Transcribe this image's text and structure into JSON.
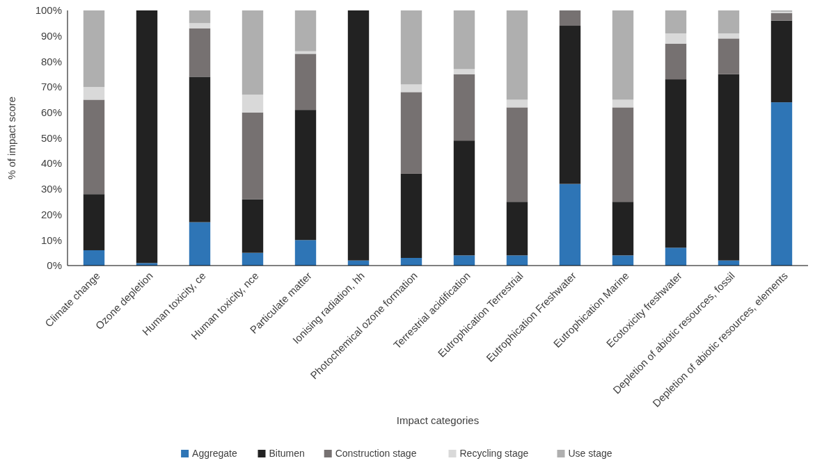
{
  "chart_data": {
    "type": "bar",
    "stacked": true,
    "xlabel": "Impact categories",
    "ylabel": "% of impact score",
    "categories": [
      "Climate change",
      "Ozone depletion",
      "Human toxicity, ce",
      "Human toxicity, nce",
      "Particulate matter",
      "Ionising radiation, hh",
      "Photochemical ozone formation",
      "Terrestrial acidification",
      "Eutrophication Terrestrial",
      "Eutrophication Freshwater",
      "Eutrophication Marine",
      "Ecotoxicity freshwater",
      "Depletion of abiotic resources, fossil",
      "Depletion of abiotic resources, elements"
    ],
    "series": [
      {
        "name": "Aggregate",
        "color": "#2e75b6",
        "values": [
          6,
          1,
          17,
          5,
          10,
          2,
          3,
          4,
          4,
          32,
          4,
          7,
          2,
          64
        ]
      },
      {
        "name": "Bitumen",
        "color": "#222222",
        "values": [
          22,
          99,
          57,
          21,
          51,
          98,
          33,
          45,
          21,
          62,
          21,
          66,
          73,
          32
        ]
      },
      {
        "name": "Construction stage",
        "color": "#767171",
        "values": [
          37,
          0,
          19,
          34,
          22,
          0,
          32,
          26,
          37,
          6,
          37,
          14,
          14,
          3
        ]
      },
      {
        "name": "Recycling stage",
        "color": "#d9d9d9",
        "values": [
          5,
          0,
          2,
          7,
          1,
          0,
          3,
          2,
          3,
          0,
          3,
          4,
          2,
          0.5
        ]
      },
      {
        "name": "Use stage",
        "color": "#afafaf",
        "values": [
          30,
          0,
          5,
          33,
          16,
          0,
          29,
          23,
          35,
          0,
          35,
          9,
          9,
          0.5
        ]
      }
    ],
    "ylim": [
      0,
      100
    ],
    "yticks": [
      {
        "value": 0,
        "label": "0%"
      },
      {
        "value": 10,
        "label": "10%"
      },
      {
        "value": 20,
        "label": "20%"
      },
      {
        "value": 30,
        "label": "30%"
      },
      {
        "value": 40,
        "label": "40%"
      },
      {
        "value": 50,
        "label": "50%"
      },
      {
        "value": 60,
        "label": "60%"
      },
      {
        "value": 70,
        "label": "70%"
      },
      {
        "value": 80,
        "label": "80%"
      },
      {
        "value": 90,
        "label": "90%"
      },
      {
        "value": 100,
        "label": "100%"
      }
    ],
    "legend": "bottom",
    "grid": false
  }
}
